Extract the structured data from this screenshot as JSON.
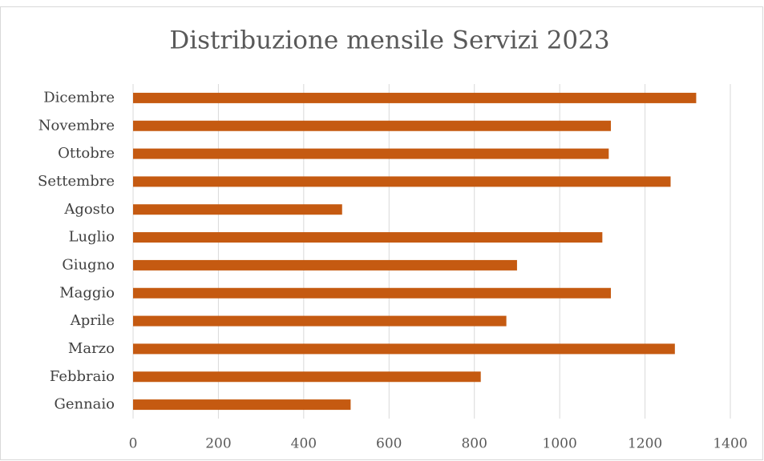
{
  "chart_data": {
    "type": "bar",
    "orientation": "horizontal",
    "title": "Distribuzione mensile Servizi 2023",
    "categories": [
      "Gennaio",
      "Febbraio",
      "Marzo",
      "Aprile",
      "Maggio",
      "Giugno",
      "Luglio",
      "Agosto",
      "Settembre",
      "Ottobre",
      "Novembre",
      "Dicembre"
    ],
    "values": [
      510,
      815,
      1270,
      875,
      1120,
      900,
      1100,
      490,
      1260,
      1115,
      1120,
      1320
    ],
    "color": "#c55a11",
    "xlim": [
      0,
      1400
    ],
    "xticks": [
      0,
      200,
      400,
      600,
      800,
      1000,
      1200,
      1400
    ],
    "grid": true
  }
}
